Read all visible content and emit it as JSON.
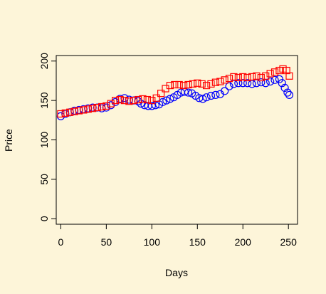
{
  "chart_data": {
    "type": "scatter",
    "title": "",
    "xlabel": "Days",
    "ylabel": "Price",
    "xlim": [
      -5,
      260
    ],
    "ylim": [
      -7,
      207
    ],
    "x_ticks": [
      0,
      50,
      100,
      150,
      200,
      250
    ],
    "y_ticks": [
      0,
      50,
      100,
      150,
      200
    ],
    "grid": false,
    "legend": "none",
    "background": "#fdf5d9",
    "series": [
      {
        "marker": "circle",
        "color": "#0000ff",
        "x": [
          0,
          5,
          10,
          15,
          20,
          25,
          30,
          35,
          40,
          45,
          50,
          55,
          60,
          65,
          70,
          75,
          80,
          85,
          88,
          92,
          96,
          100,
          104,
          108,
          112,
          116,
          120,
          124,
          128,
          132,
          136,
          140,
          144,
          148,
          152,
          156,
          160,
          165,
          170,
          175,
          180,
          185,
          190,
          195,
          200,
          205,
          210,
          215,
          220,
          225,
          230,
          235,
          240,
          243,
          246,
          249,
          251
        ],
        "y": [
          130,
          133,
          135,
          137,
          138,
          139,
          140,
          141,
          141,
          140,
          141,
          144,
          148,
          152,
          153,
          151,
          150,
          149,
          146,
          144,
          143,
          143,
          144,
          145,
          148,
          150,
          152,
          154,
          157,
          160,
          161,
          160,
          159,
          156,
          153,
          152,
          154,
          156,
          157,
          158,
          162,
          168,
          171,
          172,
          172,
          172,
          171,
          172,
          173,
          172,
          174,
          176,
          177,
          172,
          166,
          160,
          157
        ]
      },
      {
        "marker": "square",
        "color": "#ff0000",
        "x": [
          0,
          5,
          10,
          15,
          20,
          25,
          30,
          35,
          40,
          45,
          50,
          55,
          60,
          65,
          70,
          75,
          80,
          85,
          90,
          95,
          100,
          105,
          110,
          115,
          120,
          125,
          130,
          135,
          140,
          145,
          150,
          155,
          160,
          165,
          170,
          175,
          180,
          185,
          190,
          195,
          200,
          205,
          210,
          215,
          220,
          225,
          230,
          235,
          240,
          244,
          248,
          251
        ],
        "y": [
          133,
          134,
          135,
          136,
          137,
          138,
          139,
          140,
          141,
          142,
          143,
          146,
          150,
          151,
          150,
          149,
          150,
          151,
          152,
          151,
          150,
          153,
          159,
          165,
          169,
          170,
          170,
          169,
          170,
          171,
          172,
          171,
          169,
          171,
          173,
          174,
          176,
          178,
          180,
          179,
          180,
          179,
          180,
          181,
          179,
          181,
          184,
          186,
          188,
          190,
          188,
          181
        ]
      }
    ]
  }
}
